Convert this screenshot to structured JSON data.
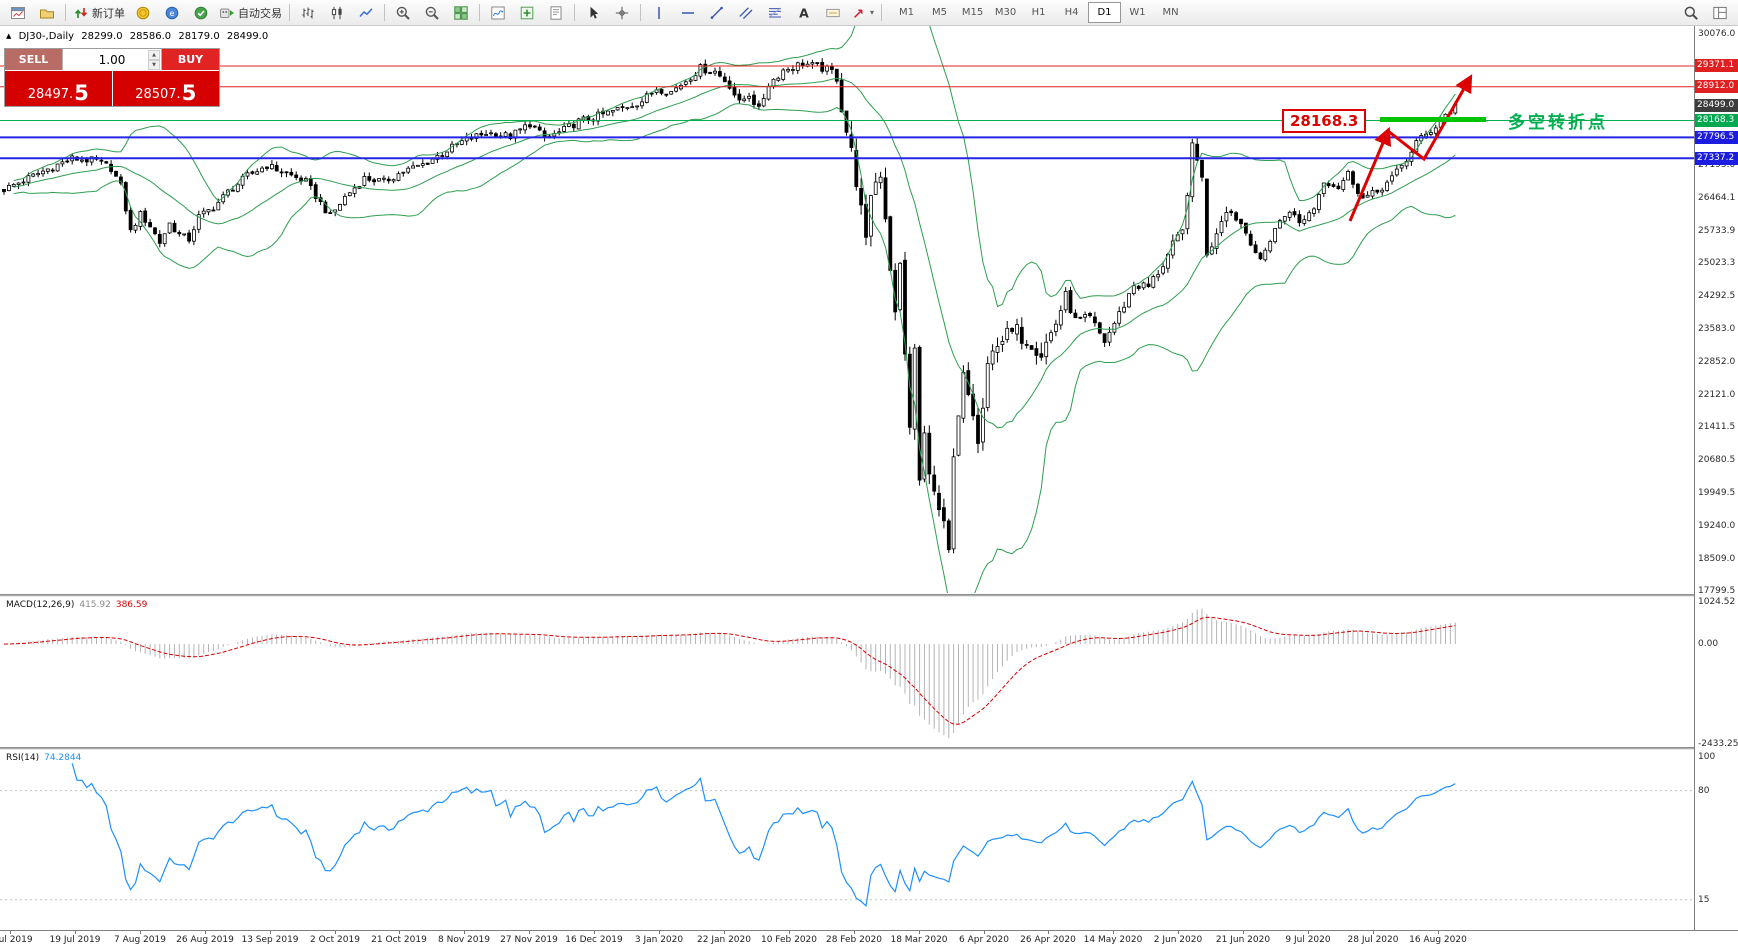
{
  "toolbar": {
    "items": [
      {
        "icon": "chart-window-icon"
      },
      {
        "icon": "profiles-icon"
      },
      {
        "sep": true
      },
      {
        "icon": "new-order-icon",
        "label": "新订单"
      },
      {
        "icon": "deposit-icon"
      },
      {
        "icon": "mql5-icon"
      },
      {
        "icon": "community-icon"
      },
      {
        "icon": "autotrading-icon",
        "label": "自动交易"
      },
      {
        "sep": true
      },
      {
        "icon": "bar-chart-icon"
      },
      {
        "icon": "candlestick-chart-icon"
      },
      {
        "icon": "line-chart-icon"
      },
      {
        "sep": true
      },
      {
        "icon": "zoom-in-icon"
      },
      {
        "icon": "zoom-out-icon"
      },
      {
        "icon": "tile-windows-icon"
      },
      {
        "sep": true
      },
      {
        "icon": "indicators-icon"
      },
      {
        "icon": "add-period-icon"
      },
      {
        "icon": "templates-icon"
      },
      {
        "sep": true
      },
      {
        "icon": "cursor-icon"
      },
      {
        "icon": "crosshair-icon"
      },
      {
        "sep": true
      },
      {
        "icon": "vertical-line-icon"
      },
      {
        "icon": "horizontal-line-icon"
      },
      {
        "icon": "trendline-icon"
      },
      {
        "icon": "channel-icon"
      },
      {
        "icon": "fibonacci-icon"
      },
      {
        "icon": "text-icon"
      },
      {
        "icon": "label-icon"
      },
      {
        "icon": "arrows-icon",
        "dropdown": true
      },
      {
        "sep": true
      }
    ],
    "timeframes": [
      "M1",
      "M5",
      "M15",
      "M30",
      "H1",
      "H4",
      "D1",
      "W1",
      "MN"
    ],
    "active_timeframe": "D1",
    "right_items": [
      {
        "icon": "search-icon"
      },
      {
        "icon": "layout-icon"
      }
    ]
  },
  "symbol_header": {
    "symbol": "DJ30-,Daily",
    "open": "28299.0",
    "high": "28586.0",
    "low": "28179.0",
    "close": "28499.0"
  },
  "trade_panel": {
    "sell_label": "SELL",
    "buy_label": "BUY",
    "volume": "1.00",
    "sell_price_main": "28497.",
    "sell_price_pip": "5",
    "buy_price_main": "28507.",
    "buy_price_pip": "5"
  },
  "price_axis": {
    "plain": [
      "30076.0",
      "27195.0",
      "26464.1",
      "25733.9",
      "25023.3",
      "24292.5",
      "23583.0",
      "22852.0",
      "22121.0",
      "21411.5",
      "20680.5",
      "19949.5",
      "19240.0",
      "18509.0",
      "17799.5"
    ],
    "badges": [
      {
        "value": "29371.1",
        "color": "red"
      },
      {
        "value": "28912.0",
        "color": "red"
      },
      {
        "value": "28499.0",
        "color": "black"
      },
      {
        "value": "28168.3",
        "color": "green"
      },
      {
        "value": "27796.5",
        "color": "blue"
      },
      {
        "value": "27337.2",
        "color": "blue"
      }
    ]
  },
  "levels": [
    {
      "price": 29371.1,
      "color": "#e02020",
      "width": 1
    },
    {
      "price": 28912.0,
      "color": "#e02020",
      "width": 1
    },
    {
      "price": 28168.3,
      "color": "#00b050",
      "width": 1
    },
    {
      "price": 27796.5,
      "color": "#2525e8",
      "width": 2
    },
    {
      "price": 27337.2,
      "color": "#2525e8",
      "width": 2
    }
  ],
  "annotations": {
    "price_flag": "28168.3",
    "turning_point_label": "多空转折点",
    "flag_color": "#dd0000",
    "highlight_color": "#00c400",
    "arrow_color": "#dd0000",
    "turning_point_color": "#00b050"
  },
  "macd_panel": {
    "name": "MACD(12,26,9)",
    "value_main": "415.92",
    "value_signal": "386.59",
    "axis_labels": [
      "1024.52",
      "0.00",
      "-2433.25"
    ]
  },
  "rsi_panel": {
    "name": "RSI(14)",
    "value": "74.2844",
    "axis_labels": [
      "100",
      "80",
      "15"
    ],
    "levels": [
      80,
      15
    ]
  },
  "time_axis": {
    "labels": [
      "1 Jul 2019",
      "19 Jul 2019",
      "7 Aug 2019",
      "26 Aug 2019",
      "13 Sep 2019",
      "2 Oct 2019",
      "21 Oct 2019",
      "8 Nov 2019",
      "27 Nov 2019",
      "16 Dec 2019",
      "3 Jan 2020",
      "22 Jan 2020",
      "10 Feb 2020",
      "28 Feb 2020",
      "18 Mar 2020",
      "6 Apr 2020",
      "26 Apr 2020",
      "14 May 2020",
      "2 Jun 2020",
      "21 Jun 2020",
      "9 Jul 2020",
      "28 Jul 2020",
      "16 Aug 2020"
    ]
  },
  "chart_data": {
    "type": "candlestick",
    "symbol": "DJ30-",
    "timeframe": "Daily",
    "candle_count": 299,
    "y_range_visible": [
      17799.5,
      30076.0
    ],
    "close_anchors": [
      [
        0,
        26650
      ],
      [
        6,
        26950
      ],
      [
        10,
        27150
      ],
      [
        14,
        27330
      ],
      [
        19,
        27280
      ],
      [
        22,
        27120
      ],
      [
        24,
        26720
      ],
      [
        26,
        25720
      ],
      [
        28,
        26100
      ],
      [
        30,
        25850
      ],
      [
        32,
        25480
      ],
      [
        34,
        25900
      ],
      [
        36,
        25650
      ],
      [
        38,
        25550
      ],
      [
        40,
        26050
      ],
      [
        43,
        26250
      ],
      [
        46,
        26600
      ],
      [
        50,
        26950
      ],
      [
        54,
        27180
      ],
      [
        58,
        27000
      ],
      [
        62,
        26820
      ],
      [
        65,
        26350
      ],
      [
        67,
        26050
      ],
      [
        70,
        26480
      ],
      [
        74,
        26900
      ],
      [
        78,
        26820
      ],
      [
        82,
        27050
      ],
      [
        86,
        27200
      ],
      [
        90,
        27450
      ],
      [
        94,
        27700
      ],
      [
        99,
        27900
      ],
      [
        104,
        27820
      ],
      [
        108,
        28100
      ],
      [
        111,
        27780
      ],
      [
        114,
        27900
      ],
      [
        118,
        28150
      ],
      [
        123,
        28300
      ],
      [
        127,
        28450
      ],
      [
        131,
        28600
      ],
      [
        134,
        28880
      ],
      [
        137,
        28800
      ],
      [
        140,
        29050
      ],
      [
        143,
        29320
      ],
      [
        146,
        29250
      ],
      [
        149,
        28950
      ],
      [
        151,
        28550
      ],
      [
        153,
        28750
      ],
      [
        155,
        28400
      ],
      [
        157,
        28970
      ],
      [
        160,
        29280
      ],
      [
        164,
        29430
      ],
      [
        167,
        29350
      ],
      [
        170,
        29250
      ],
      [
        171,
        29100
      ],
      [
        173,
        27950
      ],
      [
        175,
        26900
      ],
      [
        177,
        25400
      ],
      [
        178,
        26600
      ],
      [
        180,
        27050
      ],
      [
        181,
        26100
      ],
      [
        183,
        23850
      ],
      [
        184,
        24950
      ],
      [
        186,
        21300
      ],
      [
        187,
        23150
      ],
      [
        188,
        20200
      ],
      [
        189,
        21200
      ],
      [
        191,
        19900
      ],
      [
        193,
        19200
      ],
      [
        194,
        18600
      ],
      [
        195,
        20650
      ],
      [
        197,
        22500
      ],
      [
        199,
        21700
      ],
      [
        200,
        21000
      ],
      [
        202,
        22650
      ],
      [
        204,
        23350
      ],
      [
        208,
        23500
      ],
      [
        211,
        23300
      ],
      [
        213,
        23050
      ],
      [
        216,
        23700
      ],
      [
        218,
        24300
      ],
      [
        220,
        23750
      ],
      [
        223,
        23800
      ],
      [
        226,
        23300
      ],
      [
        229,
        23900
      ],
      [
        232,
        24550
      ],
      [
        235,
        24500
      ],
      [
        238,
        25000
      ],
      [
        240,
        25400
      ],
      [
        242,
        25700
      ],
      [
        244,
        27550
      ],
      [
        246,
        27000
      ],
      [
        247,
        25150
      ],
      [
        249,
        25750
      ],
      [
        251,
        26250
      ],
      [
        254,
        25900
      ],
      [
        256,
        25500
      ],
      [
        258,
        25050
      ],
      [
        261,
        25800
      ],
      [
        264,
        26200
      ],
      [
        266,
        25900
      ],
      [
        269,
        26250
      ],
      [
        271,
        26850
      ],
      [
        274,
        26700
      ],
      [
        276,
        27000
      ],
      [
        279,
        26450
      ],
      [
        282,
        26600
      ],
      [
        285,
        26900
      ],
      [
        288,
        27300
      ],
      [
        290,
        27700
      ],
      [
        292,
        27850
      ],
      [
        294,
        28050
      ],
      [
        296,
        28300
      ],
      [
        298,
        28490
      ]
    ],
    "indicators": {
      "bollinger": {
        "period": 20,
        "deviation": 2
      },
      "macd": {
        "fast": 12,
        "slow": 26,
        "signal": 9
      },
      "rsi": {
        "period": 14
      }
    },
    "colors": {
      "candle_up": "#ffffff",
      "candle_down": "#000000",
      "wick": "#000000",
      "bollinger": "#2f9e4f",
      "macd_histogram": "#b4b4b4",
      "macd_signal": "#dd0000",
      "rsi": "#1e90ff"
    }
  }
}
